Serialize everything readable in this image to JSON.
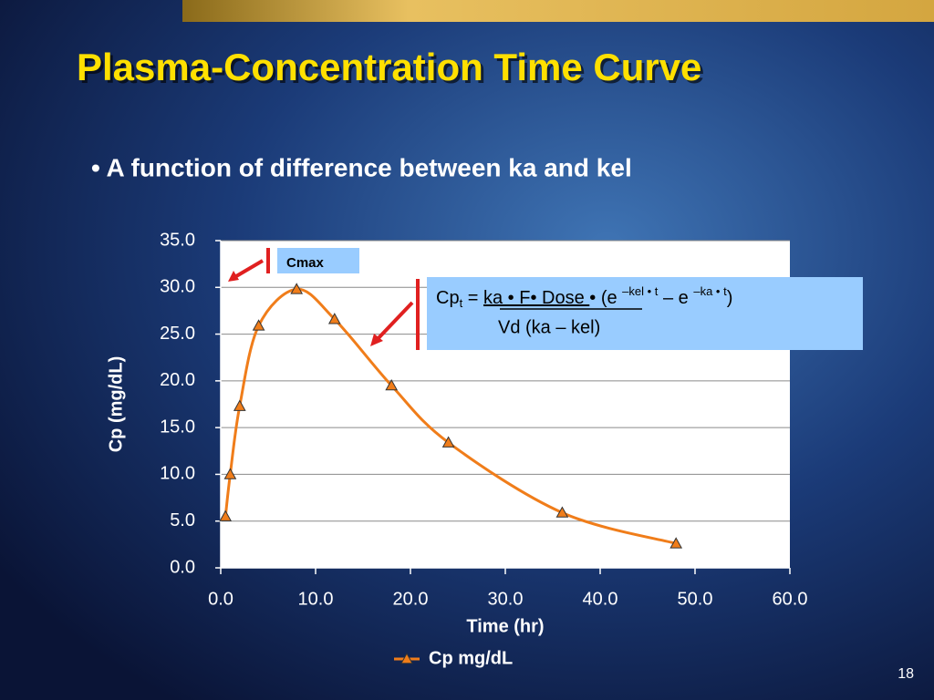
{
  "slide": {
    "title": "Plasma-Concentration Time Curve",
    "bullet": "• A function of difference between ka and kel",
    "page_number": "18"
  },
  "chart_data": {
    "type": "line",
    "x_label": "Time (hr)",
    "y_label": "Cp (mg/dL)",
    "x": [
      0.5,
      1,
      2,
      4,
      8,
      12,
      18,
      24,
      36,
      48
    ],
    "series": [
      {
        "name": "Cp mg/dL",
        "color": "#f07d1a",
        "values": [
          5.5,
          10.0,
          17.3,
          25.9,
          29.8,
          26.6,
          19.5,
          13.4,
          5.9,
          2.6
        ]
      }
    ],
    "xlim": [
      0,
      60
    ],
    "xticks": [
      {
        "value": 0,
        "label": "0.0"
      },
      {
        "value": 10,
        "label": "10.0"
      },
      {
        "value": 20,
        "label": "20.0"
      },
      {
        "value": 30,
        "label": "30.0"
      },
      {
        "value": 40,
        "label": "40.0"
      },
      {
        "value": 50,
        "label": "50.0"
      },
      {
        "value": 60,
        "label": "60.0"
      }
    ],
    "ylim": [
      0,
      35
    ],
    "yticks": [
      {
        "value": 0,
        "label": "0.0"
      },
      {
        "value": 5,
        "label": "5.0"
      },
      {
        "value": 10,
        "label": "10.0"
      },
      {
        "value": 15,
        "label": "15.0"
      },
      {
        "value": 20,
        "label": "20.0"
      },
      {
        "value": 25,
        "label": "25.0"
      },
      {
        "value": 30,
        "label": "30.0"
      },
      {
        "value": 35,
        "label": "35.0"
      }
    ],
    "grid": true,
    "legend": "bottom",
    "marker": "triangle",
    "annotations": {
      "cmax": "Cmax",
      "formula": {
        "cp": "Cp",
        "sub_t": "t",
        "eq": " = ",
        "numerator": "ka • F• Dose ",
        "mid": " • (e ",
        "exp1": "–kel • t",
        "minus": " – e ",
        "exp2": "–ka • t",
        "close": ")",
        "denominator": "Vd (ka – kel)"
      }
    }
  }
}
